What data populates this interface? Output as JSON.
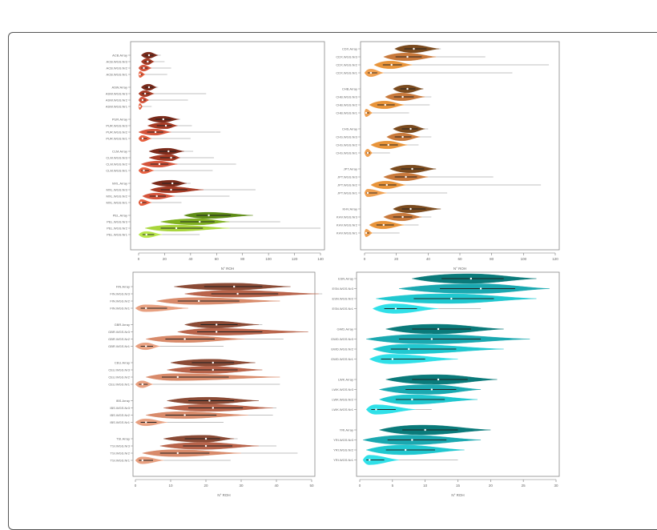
{
  "chart_data": [
    {
      "type": "violin",
      "panel": "top-left",
      "xlabel": "N° ROH",
      "xlim": [
        0,
        140
      ],
      "ticks": [
        0,
        20,
        40,
        60,
        80,
        100,
        120,
        140
      ],
      "groups": [
        {
          "name": "ACB",
          "rows": [
            {
              "label": "ACB.Array",
              "median": 8,
              "body_min": 2,
              "body_max": 15,
              "max": 17,
              "color": "#7a2a1a"
            },
            {
              "label": "ACB.WGS.Nr3",
              "median": 7,
              "body_min": 2,
              "body_max": 12,
              "max": 20,
              "color": "#a63a24"
            },
            {
              "label": "ACB.WGS.Nr2",
              "median": 4,
              "body_min": 0,
              "body_max": 10,
              "max": 25,
              "color": "#d4533a"
            },
            {
              "label": "ACB.WGS.Nr1",
              "median": 1,
              "body_min": 0,
              "body_max": 5,
              "max": 22,
              "color": "#e8603f"
            }
          ]
        },
        {
          "name": "ASW",
          "rows": [
            {
              "label": "ASW.Array",
              "median": 8,
              "body_min": 2,
              "body_max": 14,
              "max": 15,
              "color": "#7a2a1a"
            },
            {
              "label": "ASW.WGS.Nr3",
              "median": 5,
              "body_min": 0,
              "body_max": 12,
              "max": 52,
              "color": "#a63a24"
            },
            {
              "label": "ASW.WGS.Nr2",
              "median": 3,
              "body_min": 0,
              "body_max": 8,
              "max": 38,
              "color": "#d4533a"
            },
            {
              "label": "ASW.WGS.Nr1",
              "median": 1,
              "body_min": 0,
              "body_max": 3,
              "max": 10,
              "color": "#e8603f"
            }
          ]
        },
        {
          "name": "PUR",
          "rows": [
            {
              "label": "PUR.Array",
              "median": 19,
              "body_min": 7,
              "body_max": 31,
              "max": 32,
              "color": "#7a2a1a"
            },
            {
              "label": "PUR.WGS.Nr3",
              "median": 21,
              "body_min": 7,
              "body_max": 30,
              "max": 41,
              "color": "#a63a24"
            },
            {
              "label": "PUR.WGS.Nr2",
              "median": 13,
              "body_min": 0,
              "body_max": 25,
              "max": 63,
              "color": "#d4533a"
            },
            {
              "label": "PUR.WGS.Nr1",
              "median": 3,
              "body_min": 0,
              "body_max": 10,
              "max": 40,
              "color": "#e8603f"
            }
          ]
        },
        {
          "name": "CLM",
          "rows": [
            {
              "label": "CLM.Array",
              "median": 23,
              "body_min": 8,
              "body_max": 35,
              "max": 42,
              "color": "#7a2a1a"
            },
            {
              "label": "CLM.WGS.Nr3",
              "median": 25,
              "body_min": 8,
              "body_max": 32,
              "max": 58,
              "color": "#a63a24"
            },
            {
              "label": "CLM.WGS.Nr2",
              "median": 16,
              "body_min": 2,
              "body_max": 30,
              "max": 75,
              "color": "#d4533a"
            },
            {
              "label": "CLM.WGS.Nr1",
              "median": 4,
              "body_min": 0,
              "body_max": 12,
              "max": 57,
              "color": "#e8603f"
            }
          ]
        },
        {
          "name": "MXL",
          "rows": [
            {
              "label": "MXL.Array",
              "median": 26,
              "body_min": 10,
              "body_max": 37,
              "max": 40,
              "color": "#7a2a1a"
            },
            {
              "label": "MXL.WGS.Nr3",
              "median": 25,
              "body_min": 9,
              "body_max": 50,
              "max": 90,
              "color": "#a63a24"
            },
            {
              "label": "MXL.WGS.Nr2",
              "median": 14,
              "body_min": 3,
              "body_max": 28,
              "max": 70,
              "color": "#d4533a"
            },
            {
              "label": "MXL.WGS.Nr1",
              "median": 2,
              "body_min": 0,
              "body_max": 10,
              "max": 33,
              "color": "#e8603f"
            }
          ]
        },
        {
          "name": "PEL",
          "rows": [
            {
              "label": "PEL.Array",
              "median": 54,
              "body_min": 35,
              "body_max": 88,
              "max": 88,
              "color": "#5e8c16"
            },
            {
              "label": "PEL.WGS.Nr3",
              "median": 47,
              "body_min": 17,
              "body_max": 70,
              "max": 109,
              "color": "#7fb020"
            },
            {
              "label": "PEL.WGS.Nr2",
              "median": 29,
              "body_min": 5,
              "body_max": 70,
              "max": 140,
              "color": "#a8d53a"
            },
            {
              "label": "PEL.WGS.Nr1",
              "median": 6,
              "body_min": 0,
              "body_max": 18,
              "max": 47,
              "color": "#b8e64a"
            }
          ]
        }
      ]
    },
    {
      "type": "violin",
      "panel": "top-right",
      "xlabel": "N° ROH",
      "xlim": [
        0,
        120
      ],
      "ticks": [
        0,
        20,
        40,
        60,
        80,
        100,
        120
      ],
      "groups": [
        {
          "name": "CDX",
          "rows": [
            {
              "label": "CDX.Array",
              "median": 31,
              "body_min": 19,
              "body_max": 47,
              "max": 48,
              "color": "#7a4a1e"
            },
            {
              "label": "CDX.WGS.Nr3",
              "median": 27,
              "body_min": 12,
              "body_max": 45,
              "max": 76,
              "color": "#c8783a"
            },
            {
              "label": "CDX.WGS.Nr2",
              "median": 17,
              "body_min": 6,
              "body_max": 30,
              "max": 116,
              "color": "#e8943a"
            },
            {
              "label": "CDX.WGS.Nr1",
              "median": 4,
              "body_min": 0,
              "body_max": 12,
              "max": 93,
              "color": "#f0a050"
            }
          ]
        },
        {
          "name": "CHB",
          "rows": [
            {
              "label": "CHB.Array",
              "median": 27,
              "body_min": 18,
              "body_max": 37,
              "max": 37,
              "color": "#7a4a1e"
            },
            {
              "label": "CHB.WGS.Nr3",
              "median": 24,
              "body_min": 13,
              "body_max": 38,
              "max": 42,
              "color": "#c8783a"
            },
            {
              "label": "CHB.WGS.Nr2",
              "median": 13,
              "body_min": 3,
              "body_max": 25,
              "max": 41,
              "color": "#e8943a"
            },
            {
              "label": "CHB.WGS.Nr1",
              "median": 1,
              "body_min": 0,
              "body_max": 5,
              "max": 28,
              "color": "#f0a050"
            }
          ]
        },
        {
          "name": "CHS",
          "rows": [
            {
              "label": "CHS.Array",
              "median": 29,
              "body_min": 18,
              "body_max": 38,
              "max": 40,
              "color": "#7a4a1e"
            },
            {
              "label": "CHS.WGS.Nr3",
              "median": 24,
              "body_min": 14,
              "body_max": 35,
              "max": 42,
              "color": "#c8783a"
            },
            {
              "label": "CHS.WGS.Nr2",
              "median": 15,
              "body_min": 4,
              "body_max": 27,
              "max": 34,
              "color": "#e8943a"
            },
            {
              "label": "CHS.WGS.Nr1",
              "median": 2,
              "body_min": 0,
              "body_max": 5,
              "max": 16,
              "color": "#f0a050"
            }
          ]
        },
        {
          "name": "JPT",
          "rows": [
            {
              "label": "JPT.Array",
              "median": 30,
              "body_min": 16,
              "body_max": 45,
              "max": 45,
              "color": "#7a4a1e"
            },
            {
              "label": "JPT.WGS.Nr3",
              "median": 26,
              "body_min": 12,
              "body_max": 40,
              "max": 81,
              "color": "#c8783a"
            },
            {
              "label": "JPT.WGS.Nr2",
              "median": 14,
              "body_min": 4,
              "body_max": 26,
              "max": 111,
              "color": "#e8943a"
            },
            {
              "label": "JPT.WGS.Nr1",
              "median": 2,
              "body_min": 0,
              "body_max": 14,
              "max": 52,
              "color": "#f0a050"
            }
          ]
        },
        {
          "name": "KHV",
          "rows": [
            {
              "label": "KHV.Array",
              "median": 29,
              "body_min": 18,
              "body_max": 48,
              "max": 48,
              "color": "#7a4a1e"
            },
            {
              "label": "KHV.WGS.Nr3",
              "median": 24,
              "body_min": 12,
              "body_max": 36,
              "max": 42,
              "color": "#c8783a"
            },
            {
              "label": "KHV.WGS.Nr2",
              "median": 12,
              "body_min": 3,
              "body_max": 25,
              "max": 34,
              "color": "#e8943a"
            },
            {
              "label": "KHV.WGS.Nr1",
              "median": 1,
              "body_min": 0,
              "body_max": 5,
              "max": 22,
              "color": "#f0a050"
            }
          ]
        }
      ]
    },
    {
      "type": "violin",
      "panel": "bottom-left",
      "xlabel": "N° ROH",
      "xlim": [
        0,
        55
      ],
      "ticks": [
        0,
        10,
        20,
        30,
        40,
        50
      ],
      "groups": [
        {
          "name": "FIN",
          "rows": [
            {
              "label": "FIN.Array",
              "median": 28,
              "body_min": 11,
              "body_max": 44,
              "max": 44,
              "color": "#8a4a35"
            },
            {
              "label": "FIN.WGS.Nr3",
              "median": 29,
              "body_min": 14,
              "body_max": 52,
              "max": 53,
              "color": "#b8634a"
            },
            {
              "label": "FIN.WGS.Nr2",
              "median": 18,
              "body_min": 6,
              "body_max": 41,
              "max": 41,
              "color": "#d88a6a"
            },
            {
              "label": "FIN.WGS.Nr1",
              "median": 3,
              "body_min": 0,
              "body_max": 15,
              "max": 15,
              "color": "#e8a080"
            }
          ]
        },
        {
          "name": "GBR",
          "rows": [
            {
              "label": "GBR.Array",
              "median": 23,
              "body_min": 14,
              "body_max": 35,
              "max": 36,
              "color": "#8a4a35"
            },
            {
              "label": "GBR.WGS.Nr3",
              "median": 23,
              "body_min": 12,
              "body_max": 49,
              "max": 49,
              "color": "#b8634a"
            },
            {
              "label": "GBR.WGS.Nr2",
              "median": 14,
              "body_min": 3,
              "body_max": 31,
              "max": 42,
              "color": "#d88a6a"
            },
            {
              "label": "GBR.WGS.Nr1",
              "median": 3,
              "body_min": 0,
              "body_max": 7,
              "max": 25,
              "color": "#e8a080"
            }
          ]
        },
        {
          "name": "CEU",
          "rows": [
            {
              "label": "CEU.Array",
              "median": 22,
              "body_min": 10,
              "body_max": 34,
              "max": 34,
              "color": "#8a4a35"
            },
            {
              "label": "CEU.WGS.Nr3",
              "median": 22,
              "body_min": 9,
              "body_max": 36,
              "max": 36,
              "color": "#b8634a"
            },
            {
              "label": "CEU.WGS.Nr2",
              "median": 12,
              "body_min": 3,
              "body_max": 41,
              "max": 41,
              "color": "#d88a6a"
            },
            {
              "label": "CEU.WGS.Nr1",
              "median": 2,
              "body_min": 0,
              "body_max": 5,
              "max": 41,
              "color": "#e8a080"
            }
          ]
        },
        {
          "name": "IBS",
          "rows": [
            {
              "label": "IBS.Array",
              "median": 21,
              "body_min": 9,
              "body_max": 35,
              "max": 35,
              "color": "#8a4a35"
            },
            {
              "label": "IBS.WGS.Nr3",
              "median": 22,
              "body_min": 8,
              "body_max": 39,
              "max": 40,
              "color": "#b8634a"
            },
            {
              "label": "IBS.WGS.Nr2",
              "median": 14,
              "body_min": 3,
              "body_max": 32,
              "max": 39,
              "color": "#d88a6a"
            },
            {
              "label": "IBS.WGS.Nr1",
              "median": 3,
              "body_min": 0,
              "body_max": 9,
              "max": 25,
              "color": "#e8a080"
            }
          ]
        },
        {
          "name": "TSI",
          "rows": [
            {
              "label": "TSI.Array",
              "median": 20,
              "body_min": 8,
              "body_max": 28,
              "max": 29,
              "color": "#8a4a35"
            },
            {
              "label": "TSI.WGS.Nr3",
              "median": 20,
              "body_min": 7,
              "body_max": 35,
              "max": 40,
              "color": "#b8634a"
            },
            {
              "label": "TSI.WGS.Nr2",
              "median": 12,
              "body_min": 2,
              "body_max": 30,
              "max": 46,
              "color": "#d88a6a"
            },
            {
              "label": "TSI.WGS.Nr1",
              "median": 2,
              "body_min": 0,
              "body_max": 8,
              "max": 27,
              "color": "#e8a080"
            }
          ]
        }
      ]
    },
    {
      "type": "violin",
      "panel": "bottom-right",
      "xlabel": "N° ROH",
      "xlim": [
        0,
        30
      ],
      "ticks": [
        0,
        5,
        10,
        15,
        20,
        25,
        30
      ],
      "groups": [
        {
          "name": "ESN",
          "rows": [
            {
              "label": "ESN.Array",
              "median": 17,
              "body_min": 8,
              "body_max": 27,
              "max": 27,
              "color": "#0a7a7a"
            },
            {
              "label": "ESN.WGS.Nr3",
              "median": 18.5,
              "body_min": 6,
              "body_max": 29,
              "max": 29,
              "color": "#1aa8b0"
            },
            {
              "label": "ESN.WGS.Nr2",
              "median": 14,
              "body_min": 2.5,
              "body_max": 27,
              "max": 27,
              "color": "#20c8d0"
            },
            {
              "label": "ESN.WGS.Nr1",
              "median": 5.5,
              "body_min": 2,
              "body_max": 12,
              "max": 18.5,
              "color": "#30e0e8"
            }
          ]
        },
        {
          "name": "GWD",
          "rows": [
            {
              "label": "GWD.Array",
              "median": 12,
              "body_min": 4,
              "body_max": 22,
              "max": 22,
              "color": "#0a7a7a"
            },
            {
              "label": "GWD.WGS.Nr3",
              "median": 11,
              "body_min": 1,
              "body_max": 26,
              "max": 26,
              "color": "#1aa8b0"
            },
            {
              "label": "GWD.WGS.Nr2",
              "median": 7.5,
              "body_min": 2,
              "body_max": 22,
              "max": 22,
              "color": "#20c8d0"
            },
            {
              "label": "GWD.WGS.Nr1",
              "median": 5,
              "body_min": 1.5,
              "body_max": 15,
              "max": 15,
              "color": "#30e0e8"
            }
          ]
        },
        {
          "name": "LWK",
          "rows": [
            {
              "label": "LWK.Array",
              "median": 12,
              "body_min": 4,
              "body_max": 21,
              "max": 21,
              "color": "#0a7a7a"
            },
            {
              "label": "LWK.WGS.Nr3",
              "median": 11,
              "body_min": 3,
              "body_max": 18.5,
              "max": 18.5,
              "color": "#1aa8b0"
            },
            {
              "label": "LWK.WGS.Nr2",
              "median": 8,
              "body_min": 3,
              "body_max": 18,
              "max": 18,
              "color": "#20c8d0"
            },
            {
              "label": "LWK.WGS.Nr1",
              "median": 2.5,
              "body_min": 1,
              "body_max": 8.5,
              "max": 11,
              "color": "#30e0e8"
            }
          ]
        },
        {
          "name": "YRI",
          "rows": [
            {
              "label": "YRI.Array",
              "median": 10,
              "body_min": 3,
              "body_max": 20,
              "max": 20,
              "color": "#0a7a7a"
            },
            {
              "label": "YRI.WGS.Nr3",
              "median": 8,
              "body_min": 0.5,
              "body_max": 18.5,
              "max": 18.5,
              "color": "#1aa8b0"
            },
            {
              "label": "YRI.WGS.Nr2",
              "median": 7,
              "body_min": 1,
              "body_max": 16,
              "max": 16,
              "color": "#20c8d0"
            },
            {
              "label": "YRI.WGS.Nr1",
              "median": 1.5,
              "body_min": 0.5,
              "body_max": 6,
              "max": 15,
              "color": "#30e0e8"
            }
          ]
        }
      ]
    }
  ]
}
